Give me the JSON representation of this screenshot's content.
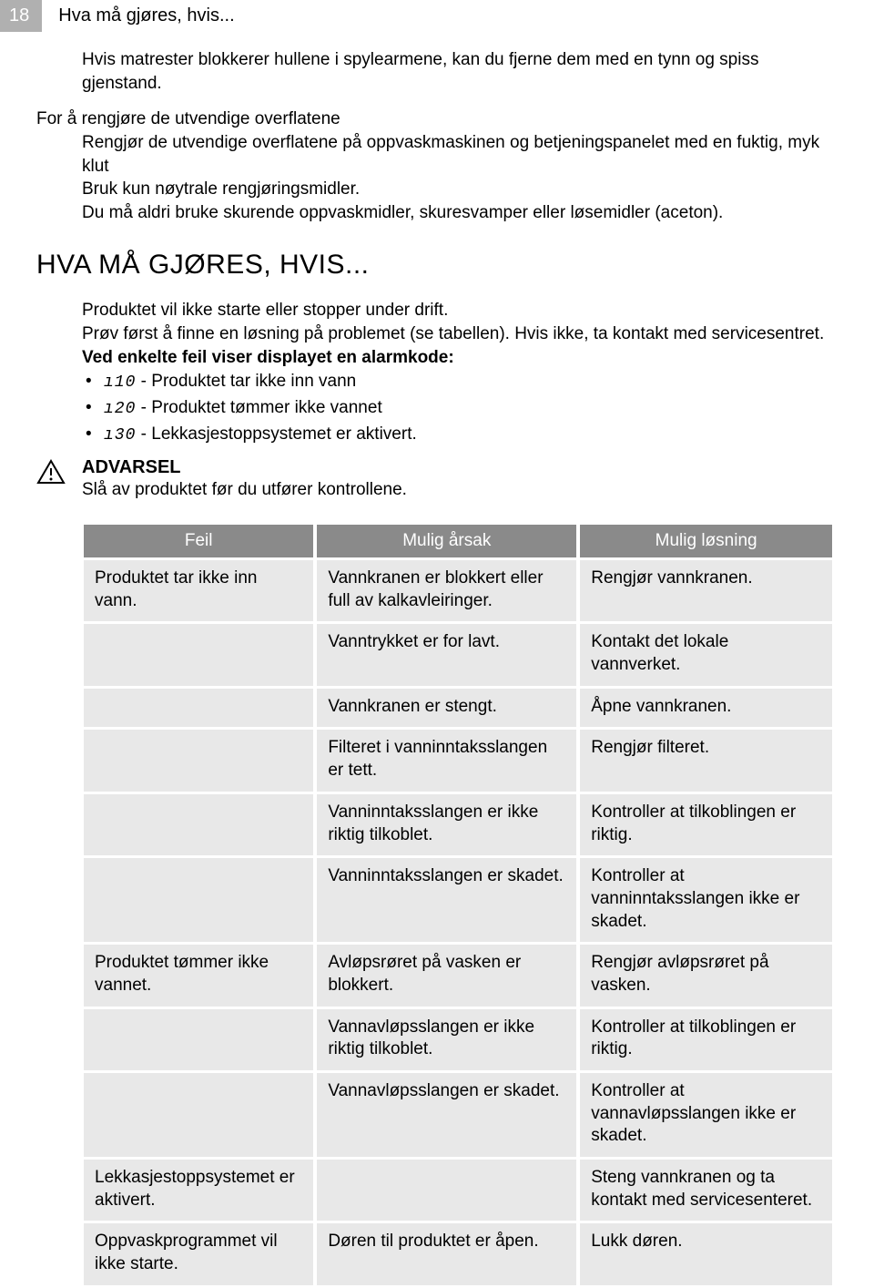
{
  "header": {
    "page_number": "18",
    "title": "Hva må gjøres, hvis..."
  },
  "intro": {
    "p1": "Hvis matrester blokkerer hullene i spylearmene, kan du fjerne dem med en tynn og spiss gjenstand."
  },
  "section1": {
    "heading": "For å rengjøre de utvendige overflatene",
    "p1": "Rengjør de utvendige overflatene på oppvaskmaskinen og betjeningspanelet med en fuktig, myk klut",
    "p2": "Bruk kun nøytrale rengjøringsmidler.",
    "p3": "Du må aldri bruke skurende oppvaskmidler, skuresvamper eller løsemidler (aceton)."
  },
  "main_heading": "HVA MÅ GJØRES, HVIS...",
  "section2": {
    "p1": "Produktet vil ikke starte eller stopper under drift.",
    "p2": "Prøv først å finne en løsning på problemet (se tabellen). Hvis ikke, ta kontakt med servicesentret.",
    "bold_line": "Ved enkelte feil viser displayet en alarmkode:",
    "bullets": [
      {
        "code": "ı10",
        "text": " - Produktet tar ikke inn vann"
      },
      {
        "code": "ı20",
        "text": " - Produktet tømmer ikke vannet"
      },
      {
        "code": "ı30",
        "text": " - Lekkasjestoppsystemet er aktivert."
      }
    ]
  },
  "warning": {
    "label": "ADVARSEL",
    "text": "Slå av produktet før du utfører kontrollene."
  },
  "table": {
    "headers": [
      "Feil",
      "Mulig årsak",
      "Mulig løsning"
    ],
    "rows": [
      [
        "Produktet tar ikke inn vann.",
        "Vannkranen er blokkert eller full av kalkavleiringer.",
        "Rengjør vannkranen."
      ],
      [
        "",
        "Vanntrykket er for lavt.",
        "Kontakt det lokale vannverket."
      ],
      [
        "",
        "Vannkranen er stengt.",
        "Åpne vannkranen."
      ],
      [
        "",
        "Filteret i vanninntaksslangen er tett.",
        "Rengjør filteret."
      ],
      [
        "",
        "Vanninntaksslangen er ikke riktig tilkoblet.",
        "Kontroller at tilkoblingen er riktig."
      ],
      [
        "",
        "Vanninntaksslangen er skadet.",
        "Kontroller at vanninntaksslangen ikke er skadet."
      ],
      [
        "Produktet tømmer ikke vannet.",
        "Avløpsrøret på vasken er blokkert.",
        "Rengjør avløpsrøret på vasken."
      ],
      [
        "",
        "Vannavløpsslangen er ikke riktig tilkoblet.",
        "Kontroller at tilkoblingen er riktig."
      ],
      [
        "",
        "Vannavløpsslangen er skadet.",
        "Kontroller at vannavløpsslangen ikke er skadet."
      ],
      [
        "Lekkasjestoppsystemet er aktivert.",
        "",
        "Steng vannkranen og ta kontakt med servicesenteret."
      ],
      [
        "Oppvaskprogrammet vil ikke starte.",
        "Døren til produktet er åpen.",
        "Lukk døren."
      ]
    ]
  }
}
